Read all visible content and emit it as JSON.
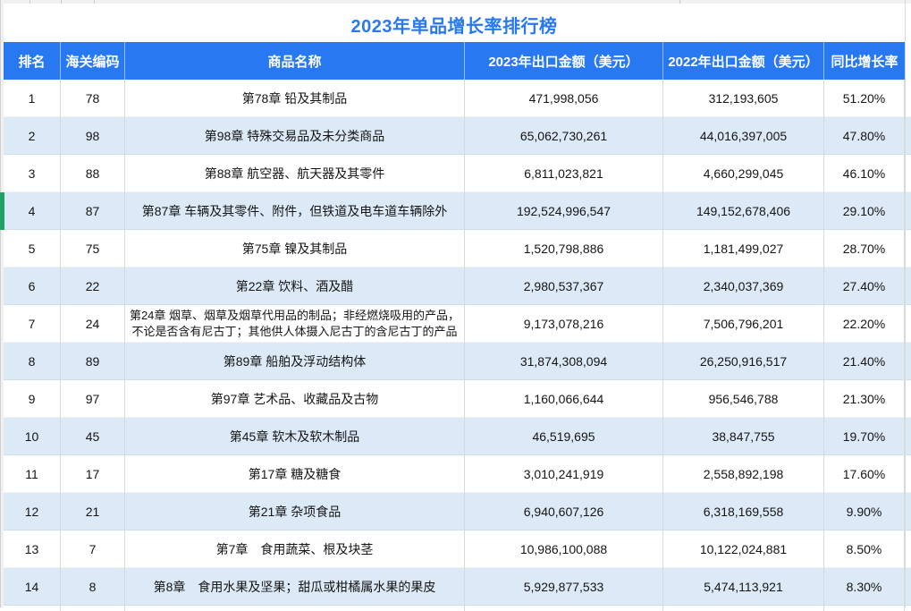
{
  "title": "2023年单品增长率排行榜",
  "table": {
    "headers": [
      {
        "label": "排名"
      },
      {
        "label": "海关编码"
      },
      {
        "label": "商品名称"
      },
      {
        "label": "2023年出口金额（美元）"
      },
      {
        "label": "2022年出口金额（美元）"
      },
      {
        "label": "同比增长率"
      }
    ],
    "selected_rank": "4",
    "rows": [
      {
        "rank": "1",
        "code": "78",
        "name": "第78章 铅及其制品",
        "amt2023": "471,998,056",
        "amt2022": "312,193,605",
        "growth": "51.20%"
      },
      {
        "rank": "2",
        "code": "98",
        "name": "第98章 特殊交易品及未分类商品",
        "amt2023": "65,062,730,261",
        "amt2022": "44,016,397,005",
        "growth": "47.80%"
      },
      {
        "rank": "3",
        "code": "88",
        "name": "第88章 航空器、航天器及其零件",
        "amt2023": "6,811,023,821",
        "amt2022": "4,660,299,045",
        "growth": "46.10%"
      },
      {
        "rank": "4",
        "code": "87",
        "name": "第87章 车辆及其零件、附件，但铁道及电车道车辆除外",
        "amt2023": "192,524,996,547",
        "amt2022": "149,152,678,406",
        "growth": "29.10%"
      },
      {
        "rank": "5",
        "code": "75",
        "name": "第75章 镍及其制品",
        "amt2023": "1,520,798,886",
        "amt2022": "1,181,499,027",
        "growth": "28.70%"
      },
      {
        "rank": "6",
        "code": "22",
        "name": "第22章 饮料、酒及醋",
        "amt2023": "2,980,537,367",
        "amt2022": "2,340,037,369",
        "growth": "27.40%"
      },
      {
        "rank": "7",
        "code": "24",
        "name": "第24章 烟草、烟草及烟草代用品的制品；非经燃烧吸用的产品，不论是否含有尼古丁；其他供人体摄入尼古丁的含尼古丁的产品",
        "amt2023": "9,173,078,216",
        "amt2022": "7,506,796,201",
        "growth": "22.20%"
      },
      {
        "rank": "8",
        "code": "89",
        "name": "第89章 船舶及浮动结构体",
        "amt2023": "31,874,308,094",
        "amt2022": "26,250,916,517",
        "growth": "21.40%"
      },
      {
        "rank": "9",
        "code": "97",
        "name": "第97章 艺术品、收藏品及古物",
        "amt2023": "1,160,066,644",
        "amt2022": "956,546,788",
        "growth": "21.30%"
      },
      {
        "rank": "10",
        "code": "45",
        "name": "第45章 软木及软木制品",
        "amt2023": "46,519,695",
        "amt2022": "38,847,755",
        "growth": "19.70%"
      },
      {
        "rank": "11",
        "code": "17",
        "name": "第17章 糖及糖食",
        "amt2023": "3,010,241,919",
        "amt2022": "2,558,892,198",
        "growth": "17.60%"
      },
      {
        "rank": "12",
        "code": "21",
        "name": "第21章 杂项食品",
        "amt2023": "6,940,607,126",
        "amt2022": "6,318,169,558",
        "growth": "9.90%"
      },
      {
        "rank": "13",
        "code": "7",
        "name": "第7章　食用蔬菜、根及块茎",
        "amt2023": "10,986,100,088",
        "amt2022": "10,122,024,881",
        "growth": "8.50%"
      },
      {
        "rank": "14",
        "code": "8",
        "name": "第8章　食用水果及坚果；甜瓜或柑橘属水果的果皮",
        "amt2023": "5,929,877,533",
        "amt2022": "5,474,113,921",
        "growth": "8.30%"
      }
    ]
  },
  "colors": {
    "accent_blue": "#2878F2",
    "band_blue": "#DCE9F6",
    "selected_green": "#21A366",
    "grid_line": "#D9D9D9"
  }
}
